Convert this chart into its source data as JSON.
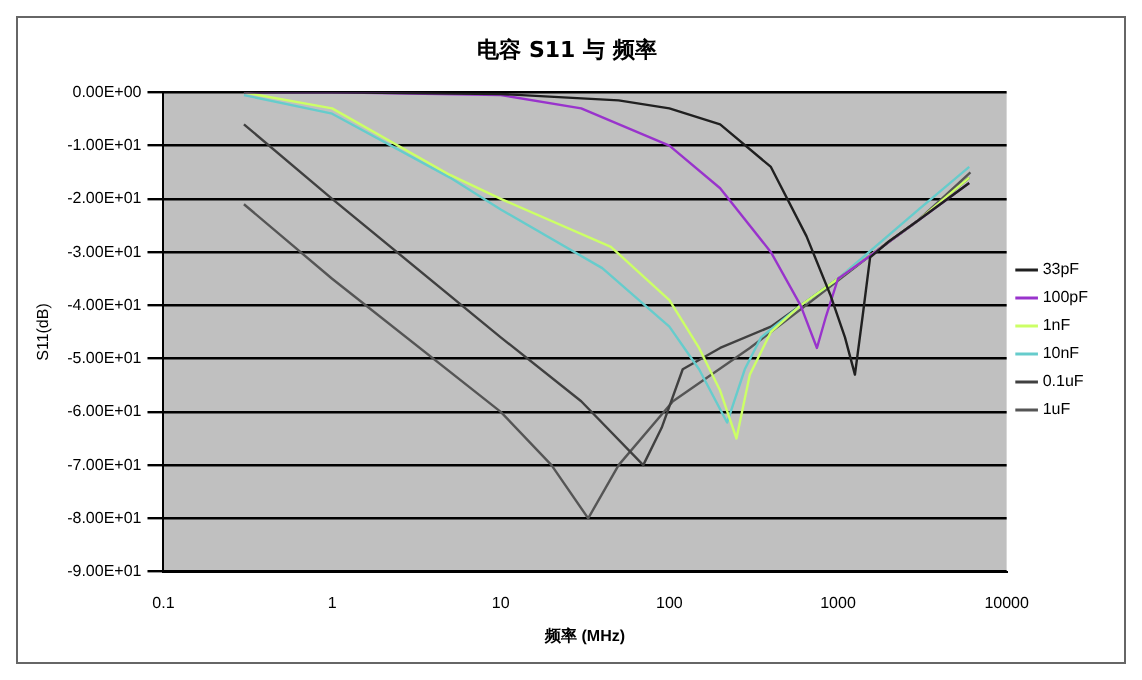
{
  "chart_data": {
    "type": "line",
    "title": "电容 S11 与 频率",
    "xlabel": "频率 (MHz)",
    "ylabel": "S11(dB)",
    "log": "x",
    "xlim": [
      0.1,
      10000
    ],
    "xticks": [
      0.1,
      1,
      10,
      100,
      1000,
      10000
    ],
    "ylim": [
      -90,
      0
    ],
    "yticks": [
      {
        "value": 0,
        "label": "0.00E+00"
      },
      {
        "value": -10,
        "label": "-1.00E+01"
      },
      {
        "value": -20,
        "label": "-2.00E+01"
      },
      {
        "value": -30,
        "label": "-3.00E+01"
      },
      {
        "value": -40,
        "label": "-4.00E+01"
      },
      {
        "value": -50,
        "label": "-5.00E+01"
      },
      {
        "value": -60,
        "label": "-6.00E+01"
      },
      {
        "value": -70,
        "label": "-7.00E+01"
      },
      {
        "value": -80,
        "label": "-8.00E+01"
      },
      {
        "value": -90,
        "label": "-9.00E+01"
      }
    ],
    "grid": "y",
    "legend": "right",
    "marker": "none",
    "line_style": "solid",
    "series": [
      {
        "name": "33pF",
        "color": "#202020",
        "x": [
          0.3,
          1,
          10,
          50,
          100,
          200,
          400,
          650,
          900,
          1100,
          1260,
          1400,
          1550,
          2000,
          3000,
          6000
        ],
        "values": [
          0,
          0,
          -0.3,
          -1.5,
          -3,
          -6,
          -14,
          -27,
          -38,
          -46,
          -53,
          -42,
          -31,
          -28,
          -24,
          -17
        ]
      },
      {
        "name": "100pF",
        "color": "#9933cc",
        "x": [
          0.3,
          1,
          10,
          30,
          100,
          200,
          400,
          600,
          750,
          850,
          1000,
          1500,
          3000,
          6000
        ],
        "values": [
          0,
          0,
          -0.5,
          -3,
          -10,
          -18,
          -30,
          -40,
          -48,
          -42,
          -35,
          -31,
          -24,
          -17
        ]
      },
      {
        "name": "1nF",
        "color": "#ccff66",
        "x": [
          0.3,
          1,
          5,
          10,
          45,
          100,
          150,
          200,
          250,
          300,
          400,
          600,
          1000,
          3000,
          6000
        ],
        "values": [
          0,
          -3,
          -15.5,
          -20,
          -29,
          -39,
          -48,
          -56,
          -65,
          -53,
          -45,
          -40,
          -35,
          -24,
          -16
        ]
      },
      {
        "name": "10nF",
        "color": "#66cccc",
        "x": [
          0.3,
          1,
          5,
          10,
          40,
          100,
          150,
          220,
          280,
          350,
          600,
          1000,
          3000,
          6000
        ],
        "values": [
          -0.5,
          -4,
          -16,
          -22,
          -33,
          -44,
          -52,
          -62,
          -52,
          -46,
          -40,
          -35,
          -22,
          -14
        ]
      },
      {
        "name": "0.1uF",
        "color": "#404040",
        "x": [
          0.3,
          1,
          10,
          30,
          70,
          90,
          120,
          200,
          400,
          1000,
          3000,
          6000
        ],
        "values": [
          -6,
          -20,
          -46,
          -58,
          -70,
          -63,
          -52,
          -48,
          -44,
          -35,
          -24,
          -16
        ]
      },
      {
        "name": "1uF",
        "color": "#555555",
        "x": [
          0.3,
          1,
          10,
          20,
          33,
          50,
          105,
          300,
          646,
          1500,
          3000,
          6100
        ],
        "values": [
          -21,
          -35,
          -60,
          -70,
          -80,
          -70,
          -58,
          -48,
          -40,
          -31,
          -24,
          -15
        ]
      }
    ]
  }
}
